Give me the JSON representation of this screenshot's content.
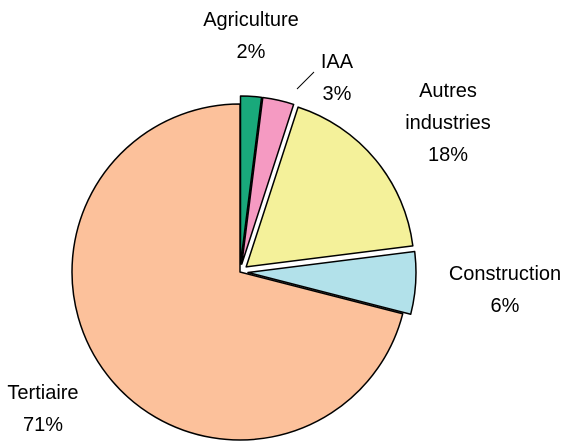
{
  "chart_data": {
    "type": "pie",
    "categories": [
      "Agriculture",
      "IAA",
      "Autres industries",
      "Construction",
      "Tertiaire"
    ],
    "values": [
      2,
      3,
      18,
      6,
      71
    ],
    "value_labels": [
      "2%",
      "3%",
      "18%",
      "6%",
      "71%"
    ],
    "colors": [
      "#19a97b",
      "#f59ac2",
      "#f4f19a",
      "#b2e1ea",
      "#fcc19b"
    ]
  }
}
